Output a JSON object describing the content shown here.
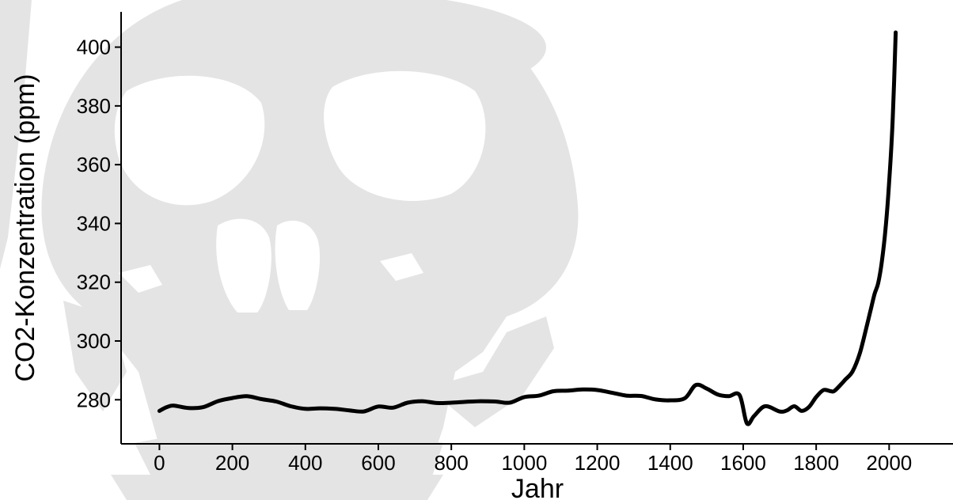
{
  "chart_data": {
    "type": "line",
    "xlabel": "Jahr",
    "ylabel": "CO2-Konzentration (ppm)",
    "xlim": [
      -105,
      2175
    ],
    "ylim": [
      265,
      412
    ],
    "x_ticks": [
      0,
      200,
      400,
      600,
      800,
      1000,
      1200,
      1400,
      1600,
      1800,
      2000
    ],
    "x_tick_labels": [
      "0",
      "200",
      "400",
      "600",
      "800",
      "1000",
      "1200",
      "1400",
      "1600",
      "1800",
      "2000"
    ],
    "y_ticks": [
      280,
      300,
      320,
      340,
      360,
      380,
      400
    ],
    "y_tick_labels": [
      "280",
      "300",
      "320",
      "340",
      "360",
      "380",
      "400"
    ],
    "grid": false,
    "background_watermark": "skull-illustration",
    "colors": {
      "line": "#000000",
      "watermark": "#e4e4e4",
      "axis": "#000000"
    },
    "series": [
      {
        "x": [
          0,
          20,
          40,
          80,
          120,
          160,
          200,
          240,
          280,
          320,
          360,
          400,
          440,
          480,
          520,
          560,
          600,
          640,
          680,
          720,
          760,
          800,
          840,
          880,
          920,
          960,
          1000,
          1040,
          1080,
          1120,
          1160,
          1200,
          1240,
          1280,
          1320,
          1360,
          1400,
          1440,
          1470,
          1500,
          1530,
          1560,
          1590,
          1610,
          1630,
          1660,
          1700,
          1720,
          1740,
          1760,
          1780,
          1800,
          1820,
          1840,
          1850,
          1870,
          1880,
          1900,
          1920,
          1940,
          1950,
          1960,
          1970,
          1980,
          1990,
          2000,
          2010,
          2018
        ],
        "y": [
          276.2,
          277.5,
          278.0,
          277.2,
          277.5,
          279.5,
          280.6,
          281.2,
          280.2,
          279.4,
          277.8,
          276.9,
          277.1,
          276.9,
          276.4,
          276.0,
          277.7,
          277.3,
          279.0,
          279.5,
          278.9,
          279.0,
          279.3,
          279.5,
          279.4,
          279.0,
          280.9,
          281.4,
          282.9,
          283.1,
          283.5,
          283.3,
          282.4,
          281.4,
          281.3,
          280.1,
          279.8,
          280.5,
          285.0,
          283.8,
          281.8,
          281.2,
          281.6,
          272.0,
          274.5,
          277.8,
          276.0,
          276.4,
          277.8,
          276.2,
          277.5,
          280.9,
          283.3,
          282.9,
          283.0,
          285.5,
          286.9,
          289.7,
          296.0,
          305.8,
          310.9,
          316.0,
          319.7,
          327.0,
          338.0,
          354.0,
          376.0,
          405.0
        ]
      }
    ]
  }
}
